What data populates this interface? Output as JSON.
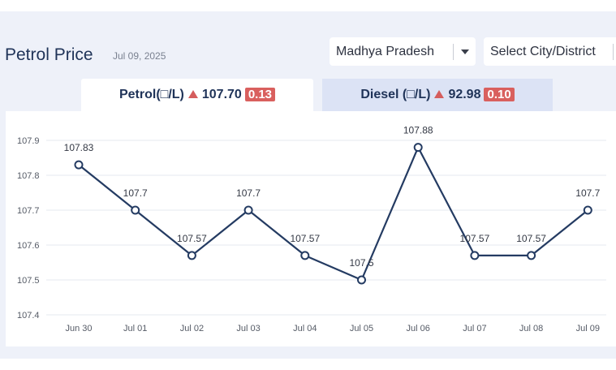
{
  "header": {
    "title": "Petrol Price",
    "date": "Jul 09, 2025"
  },
  "filters": {
    "state": "Madhya Pradesh",
    "city_placeholder": "Select City/District"
  },
  "tabs": {
    "petrol": {
      "label": "Petrol(□/L)",
      "price": "107.70",
      "change": "0.13"
    },
    "diesel": {
      "label": "Diesel (□/L)",
      "price": "92.98",
      "change": "0.10"
    }
  },
  "colors": {
    "line": "#243b62",
    "up_arrow": "#d55d5d",
    "badge": "#d9605e",
    "active_tab": "#ffffff",
    "inactive_tab": "#dce3f5"
  },
  "chart_data": {
    "type": "line",
    "categories": [
      "Jun 30",
      "Jul 01",
      "Jul 02",
      "Jul 03",
      "Jul 04",
      "Jul 05",
      "Jul 06",
      "Jul 07",
      "Jul 08",
      "Jul 09"
    ],
    "values": [
      107.83,
      107.7,
      107.57,
      107.7,
      107.57,
      107.5,
      107.88,
      107.57,
      107.57,
      107.7
    ],
    "data_labels": [
      "107.83",
      "107.7",
      "107.57",
      "107.7",
      "107.57",
      "107.5",
      "107.88",
      "107.57",
      "107.57",
      "107.7"
    ],
    "yticks": [
      "107.9",
      "107.8",
      "107.7",
      "107.6",
      "107.5",
      "107.4"
    ],
    "ylim": [
      107.4,
      107.9
    ],
    "grid": true,
    "title": "",
    "xlabel": "",
    "ylabel": ""
  }
}
